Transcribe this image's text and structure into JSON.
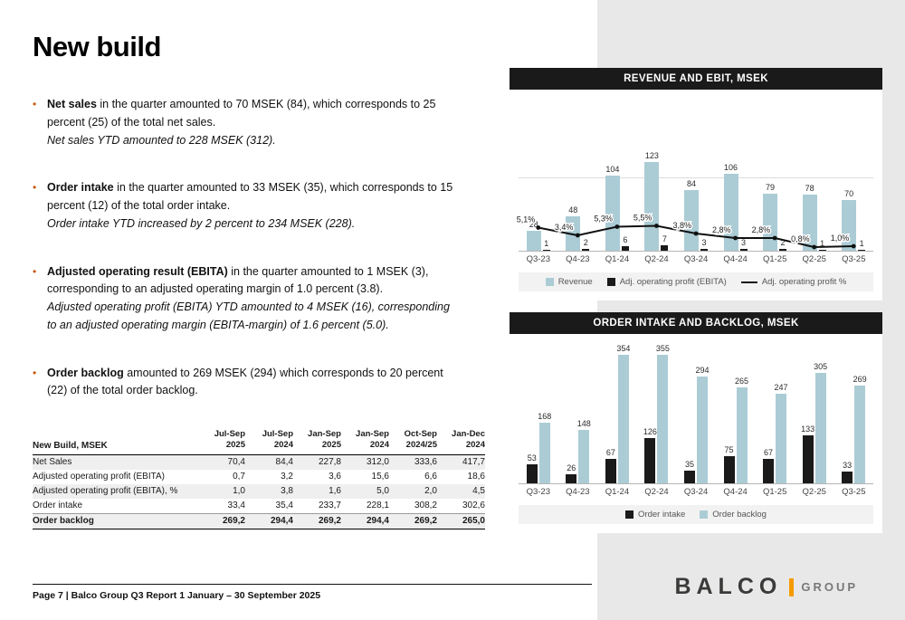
{
  "page": {
    "title": "New build",
    "footer": "Page 7 | Balco Group Q3 Report 1 January – 30 September 2025",
    "logo": {
      "balco": "BALCO",
      "group": "GROUP"
    }
  },
  "colors": {
    "bullet_orange": "#c45911",
    "logo_orange": "#f59b00",
    "bar_blue": "#abccd5",
    "bar_black": "#1a1a1a",
    "panel_gray": "#e9e8e8"
  },
  "bullets": [
    {
      "lead": "Net sales",
      "rest": " in the quarter amounted to 70 MSEK (84), which corresponds to 25 percent (25) of the total net sales.",
      "italic": "Net sales YTD amounted to 228 MSEK (312)."
    },
    {
      "lead": "Order intake",
      "rest": " in the quarter amounted to 33 MSEK (35), which corresponds to 15 percent (12) of the total order intake.",
      "italic": "Order intake YTD increased by 2 percent to 234 MSEK (228)."
    },
    {
      "lead": "Adjusted operating result (EBITA)",
      "rest": " in the quarter amounted to 1 MSEK (3), corresponding to an adjusted operating margin of 1.0 percent (3.8).",
      "italic": "Adjusted operating profit (EBITA) YTD amounted to 4 MSEK (16), corresponding to an adjusted operating margin (EBITA-margin) of 1.6 percent (5.0)."
    },
    {
      "lead": "Order backlog",
      "rest": " amounted to 269 MSEK (294) which corresponds to 20 percent (22) of the total order backlog.",
      "italic": ""
    }
  ],
  "table": {
    "label_header": "New Build, MSEK",
    "col_headers": [
      [
        "Jul-Sep",
        "2025"
      ],
      [
        "Jul-Sep",
        "2024"
      ],
      [
        "Jan-Sep",
        "2025"
      ],
      [
        "Jan-Sep",
        "2024"
      ],
      [
        "Oct-Sep",
        "2024/25"
      ],
      [
        "Jan-Dec",
        "2024"
      ]
    ],
    "rows": [
      {
        "label": "Net Sales",
        "values": [
          "70,4",
          "84,4",
          "227,8",
          "312,0",
          "333,6",
          "417,7"
        ],
        "bold": false
      },
      {
        "label": "Adjusted operating profit (EBITA)",
        "values": [
          "0,7",
          "3,2",
          "3,6",
          "15,6",
          "6,6",
          "18,6"
        ],
        "bold": false
      },
      {
        "label": "Adjusted operating profit (EBITA), %",
        "values": [
          "1,0",
          "3,8",
          "1,6",
          "5,0",
          "2,0",
          "4,5"
        ],
        "bold": false
      },
      {
        "label": "Order intake",
        "values": [
          "33,4",
          "35,4",
          "233,7",
          "228,1",
          "308,2",
          "302,6"
        ],
        "bold": false
      },
      {
        "label": "Order backlog",
        "values": [
          "269,2",
          "294,4",
          "269,2",
          "294,4",
          "269,2",
          "265,0"
        ],
        "bold": true
      }
    ]
  },
  "chart_data": [
    {
      "type": "bar",
      "title": "REVENUE AND EBIT, MSEK",
      "categories": [
        "Q3-23",
        "Q4-23",
        "Q1-24",
        "Q2-24",
        "Q3-24",
        "Q4-24",
        "Q1-25",
        "Q2-25",
        "Q3-25"
      ],
      "series": [
        {
          "name": "Revenue",
          "color": "#abccd5",
          "values": [
            28,
            48,
            104,
            123,
            84,
            106,
            79,
            78,
            70
          ]
        },
        {
          "name": "Adj. operating profit (EBITA)",
          "color": "#1a1a1a",
          "values": [
            1,
            2,
            6,
            7,
            3,
            3,
            2,
            1,
            1
          ]
        }
      ],
      "line": {
        "name": "Adj. operating profit %",
        "values": [
          5.1,
          3.4,
          5.3,
          5.5,
          3.8,
          2.8,
          2.8,
          0.8,
          1.0
        ],
        "labels": [
          "5,1%",
          "3,4%",
          "5,3%",
          "5,5%",
          "3,8%",
          "2,8%",
          "2,8%",
          "0,8%",
          "1,0%"
        ]
      },
      "ylim": [
        0,
        135
      ],
      "legend_position": "bottom",
      "grid": "single line at 100"
    },
    {
      "type": "bar",
      "title": "ORDER INTAKE AND BACKLOG, MSEK",
      "categories": [
        "Q3-23",
        "Q4-23",
        "Q1-24",
        "Q2-24",
        "Q3-24",
        "Q4-24",
        "Q1-25",
        "Q2-25",
        "Q3-25"
      ],
      "series": [
        {
          "name": "Order intake",
          "color": "#1a1a1a",
          "values": [
            53,
            26,
            67,
            126,
            35,
            75,
            67,
            133,
            33
          ]
        },
        {
          "name": "Order backlog",
          "color": "#abccd5",
          "values": [
            168,
            148,
            354,
            355,
            294,
            265,
            247,
            305,
            269
          ]
        }
      ],
      "ylim": [
        0,
        380
      ],
      "legend_position": "bottom"
    }
  ]
}
